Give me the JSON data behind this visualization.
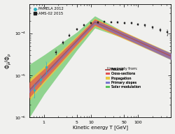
{
  "xlabel": "Kinetic energy T [GeV]",
  "ylabel": "$\\Phi_{\\bar{p}}/\\Phi_p$",
  "xlim": [
    0.5,
    500
  ],
  "ylim": [
    1e-06,
    0.0005
  ],
  "bg_color": "#f0f0ee",
  "fiducial_color": "#b05050",
  "cross_sections_color": "#e05050",
  "propagation_color": "#e8c840",
  "primary_slopes_color": "#7070cc",
  "solar_modulation_color": "#50c050",
  "pamela_color": "#30b0c0",
  "ams_color": "#202020",
  "pamela_label": "PAMELA 2012",
  "ams_label": "AMS-02 2015",
  "uncertainty_label": "Uncertainty from:"
}
